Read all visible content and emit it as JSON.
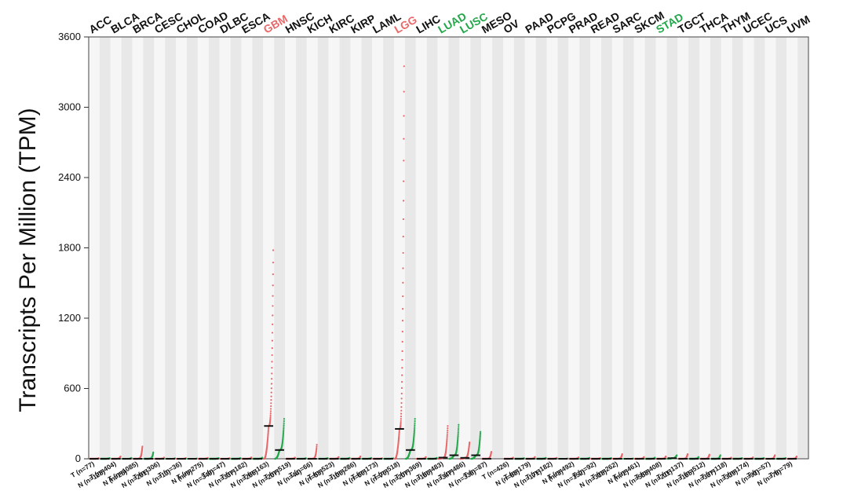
{
  "chart_data": {
    "type": "scatter",
    "ylabel": "Transcripts Per Million (TPM)",
    "ylim": [
      0,
      3600
    ],
    "yticks": [
      0,
      600,
      1200,
      1800,
      2400,
      3000,
      3600
    ],
    "colors": {
      "tumor": "#e8686a",
      "normal": "#22a84a",
      "median": "#111111",
      "label_default": "#111111",
      "band_shade": "#e8e8e8",
      "band_light": "#f6f6f6"
    },
    "cancers": [
      {
        "name": "ACC",
        "highlight": "none",
        "tumor_n": "n=77",
        "normal_n": "n=128",
        "tumor_median": 0,
        "normal_median": 0,
        "tumor_max": 5,
        "normal_max": 6
      },
      {
        "name": "BLCA",
        "highlight": "none",
        "tumor_n": "n=404",
        "normal_n": "n=28",
        "tumor_median": 0,
        "normal_median": 0,
        "tumor_max": 20,
        "normal_max": 8
      },
      {
        "name": "BRCA",
        "highlight": "none",
        "tumor_n": "n=1085",
        "normal_n": "n=291",
        "tumor_median": 0,
        "normal_median": 0,
        "tumor_max": 105,
        "normal_max": 55
      },
      {
        "name": "CESC",
        "highlight": "none",
        "tumor_n": "n=306",
        "normal_n": "n=13",
        "tumor_median": 0,
        "normal_median": 0,
        "tumor_max": 10,
        "normal_max": 4
      },
      {
        "name": "CHOL",
        "highlight": "none",
        "tumor_n": "n=36",
        "normal_n": "n=9",
        "tumor_median": 0,
        "normal_median": 0,
        "tumor_max": 6,
        "normal_max": 3
      },
      {
        "name": "COAD",
        "highlight": "none",
        "tumor_n": "n=275",
        "normal_n": "n=349",
        "tumor_median": 0,
        "normal_median": 0,
        "tumor_max": 8,
        "normal_max": 6
      },
      {
        "name": "DLBC",
        "highlight": "none",
        "tumor_n": "n=47",
        "normal_n": "n=337",
        "tumor_median": 0,
        "normal_median": 0,
        "tumor_max": 5,
        "normal_max": 6
      },
      {
        "name": "ESCA",
        "highlight": "none",
        "tumor_n": "n=182",
        "normal_n": "n=286",
        "tumor_median": 0,
        "normal_median": 0,
        "tumor_max": 12,
        "normal_max": 10
      },
      {
        "name": "GBM",
        "highlight": "up",
        "tumor_n": "n=163",
        "normal_n": "n=207",
        "tumor_median": 280,
        "normal_median": 75,
        "tumor_max": 1780,
        "normal_max": 340
      },
      {
        "name": "HNSC",
        "highlight": "none",
        "tumor_n": "n=519",
        "normal_n": "n=44",
        "tumor_median": 0,
        "normal_median": 0,
        "tumor_max": 10,
        "normal_max": 5
      },
      {
        "name": "KICH",
        "highlight": "none",
        "tumor_n": "n=66",
        "normal_n": "n=53",
        "tumor_median": 0,
        "normal_median": 0,
        "tumor_max": 120,
        "normal_max": 6
      },
      {
        "name": "KIRC",
        "highlight": "none",
        "tumor_n": "n=523",
        "normal_n": "n=100",
        "tumor_median": 0,
        "normal_median": 0,
        "tumor_max": 15,
        "normal_max": 8
      },
      {
        "name": "KIRP",
        "highlight": "none",
        "tumor_n": "n=286",
        "normal_n": "n=60",
        "tumor_median": 0,
        "normal_median": 0,
        "tumor_max": 20,
        "normal_max": 8
      },
      {
        "name": "LAML",
        "highlight": "none",
        "tumor_n": "n=173",
        "normal_n": "n=70",
        "tumor_median": 0,
        "normal_median": 0,
        "tumor_max": 4,
        "normal_max": 4
      },
      {
        "name": "LGG",
        "highlight": "up",
        "tumor_n": "n=518",
        "normal_n": "n=207",
        "tumor_median": 255,
        "normal_median": 75,
        "tumor_max": 3350,
        "normal_max": 340
      },
      {
        "name": "LIHC",
        "highlight": "none",
        "tumor_n": "n=369",
        "normal_n": "n=160",
        "tumor_median": 0,
        "normal_median": 0,
        "tumor_max": 15,
        "normal_max": 8
      },
      {
        "name": "LUAD",
        "highlight": "down",
        "tumor_n": "n=483",
        "normal_n": "n=347",
        "tumor_median": 10,
        "normal_median": 30,
        "tumor_max": 280,
        "normal_max": 290
      },
      {
        "name": "LUSC",
        "highlight": "down",
        "tumor_n": "n=486",
        "normal_n": "n=338",
        "tumor_median": 8,
        "normal_median": 30,
        "tumor_max": 140,
        "normal_max": 230
      },
      {
        "name": "MESO",
        "highlight": "none",
        "tumor_n": "n=87",
        "normal_n": "",
        "tumor_median": 0,
        "normal_median": null,
        "tumor_max": 60,
        "normal_max": null
      },
      {
        "name": "OV",
        "highlight": "none",
        "tumor_n": "n=426",
        "normal_n": "n=88",
        "tumor_median": 0,
        "normal_median": 0,
        "tumor_max": 10,
        "normal_max": 5
      },
      {
        "name": "PAAD",
        "highlight": "none",
        "tumor_n": "n=179",
        "normal_n": "n=171",
        "tumor_median": 0,
        "normal_median": 0,
        "tumor_max": 15,
        "normal_max": 8
      },
      {
        "name": "PCPG",
        "highlight": "none",
        "tumor_n": "n=182",
        "normal_n": "n=3",
        "tumor_median": 0,
        "normal_median": 0,
        "tumor_max": 8,
        "normal_max": 3
      },
      {
        "name": "PRAD",
        "highlight": "none",
        "tumor_n": "n=492",
        "normal_n": "n=152",
        "tumor_median": 0,
        "normal_median": 0,
        "tumor_max": 12,
        "normal_max": 8
      },
      {
        "name": "READ",
        "highlight": "none",
        "tumor_n": "n=92",
        "normal_n": "n=318",
        "tumor_median": 0,
        "normal_median": 0,
        "tumor_max": 6,
        "normal_max": 6
      },
      {
        "name": "SARC",
        "highlight": "none",
        "tumor_n": "n=262",
        "normal_n": "n=2",
        "tumor_median": 0,
        "normal_median": 0,
        "tumor_max": 40,
        "normal_max": 3
      },
      {
        "name": "SKCM",
        "highlight": "none",
        "tumor_n": "n=461",
        "normal_n": "n=558",
        "tumor_median": 0,
        "normal_median": 0,
        "tumor_max": 15,
        "normal_max": 10
      },
      {
        "name": "STAD",
        "highlight": "down",
        "tumor_n": "n=408",
        "normal_n": "n=211",
        "tumor_median": 0,
        "normal_median": 5,
        "tumor_max": 20,
        "normal_max": 30
      },
      {
        "name": "TGCT",
        "highlight": "none",
        "tumor_n": "n=137",
        "normal_n": "n=165",
        "tumor_median": 0,
        "normal_median": 0,
        "tumor_max": 40,
        "normal_max": 15
      },
      {
        "name": "THCA",
        "highlight": "none",
        "tumor_n": "n=512",
        "normal_n": "n=337",
        "tumor_median": 0,
        "normal_median": 0,
        "tumor_max": 35,
        "normal_max": 30
      },
      {
        "name": "THYM",
        "highlight": "none",
        "tumor_n": "n=118",
        "normal_n": "n=339",
        "tumor_median": 0,
        "normal_median": 0,
        "tumor_max": 10,
        "normal_max": 6
      },
      {
        "name": "UCEC",
        "highlight": "none",
        "tumor_n": "n=174",
        "normal_n": "n=91",
        "tumor_median": 0,
        "normal_median": 0,
        "tumor_max": 12,
        "normal_max": 6
      },
      {
        "name": "UCS",
        "highlight": "none",
        "tumor_n": "n=57",
        "normal_n": "n=78",
        "tumor_median": 0,
        "normal_median": 0,
        "tumor_max": 30,
        "normal_max": 6
      },
      {
        "name": "UVM",
        "highlight": "none",
        "tumor_n": "n=79",
        "normal_n": "",
        "tumor_median": 0,
        "normal_median": null,
        "tumor_max": 20,
        "normal_max": null
      }
    ],
    "sample_prefix": {
      "tumor": "T",
      "normal": "N"
    }
  }
}
